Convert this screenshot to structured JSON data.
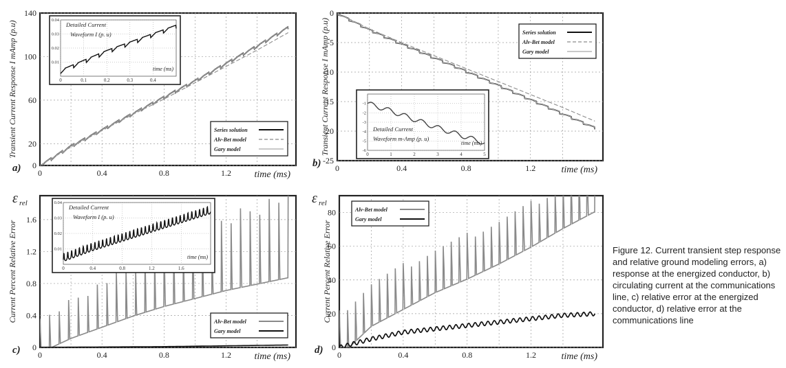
{
  "caption": "Figure 12. Current transient step response and relative ground modeling errors, a) response at the energized conductor, b) circulating current at the communications line, c) relative error at the energized conductor, d) relative error at the communications line",
  "colors": {
    "series": "#111111",
    "alvbet": "#8a8a8a",
    "gary": "#a8a8a8",
    "grid": "#9a9a9a"
  },
  "chart_data": [
    {
      "panel": "a)",
      "type": "line",
      "ylabel": "Transient Current Response I mAmp (p.u)",
      "xlabel": "time (ms)",
      "xlim": [
        0,
        1.65
      ],
      "ylim": [
        0,
        140
      ],
      "xticks": [
        "0",
        "0.4",
        "0.8",
        "1.2"
      ],
      "yticks": [
        "0",
        "20",
        "60",
        "100",
        "140"
      ],
      "legend": "bottom-right",
      "series": [
        {
          "name": "Series solution",
          "x": [
            0,
            0.2,
            0.4,
            0.6,
            0.8,
            1.0,
            1.2,
            1.4,
            1.6
          ],
          "y": [
            0,
            18,
            33,
            48,
            63,
            78,
            94,
            110,
            127
          ]
        },
        {
          "name": "Alv-Bet model",
          "x": [
            0,
            0.2,
            0.4,
            0.6,
            0.8,
            1.0,
            1.2,
            1.4,
            1.6
          ],
          "y": [
            0,
            17,
            32,
            47,
            61,
            76,
            91,
            106,
            122
          ]
        },
        {
          "name": "Gary model",
          "x": [
            0,
            0.2,
            0.4,
            0.6,
            0.8,
            1.0,
            1.2,
            1.4,
            1.6
          ],
          "y": [
            0,
            18,
            33,
            48,
            63,
            78,
            94,
            110,
            127
          ]
        }
      ],
      "inset": {
        "title": "Detailed Current Waveform I (p. u)",
        "xlabel": "time (ms)",
        "xlim": [
          0,
          0.5
        ],
        "ylim": [
          0,
          0.04
        ],
        "xticks": [
          "0",
          "0.1",
          "0.2",
          "0.3",
          "0.4"
        ],
        "yticks": [
          "0.01",
          "0.02",
          "0.03",
          "0.04"
        ],
        "x": [
          0,
          0.1,
          0.2,
          0.3,
          0.4,
          0.5
        ],
        "y": [
          0.004,
          0.011,
          0.018,
          0.024,
          0.03,
          0.036
        ]
      }
    },
    {
      "panel": "b)",
      "type": "line",
      "ylabel": "Transient Current Response I mAmp (p.u)",
      "xlabel": "time (ms)",
      "xlim": [
        0,
        1.65
      ],
      "ylim": [
        -25,
        0
      ],
      "xticks": [
        "0",
        "0.4",
        "0.8",
        "1.2"
      ],
      "yticks": [
        "0",
        "-5",
        "-10",
        "-15",
        "-20",
        "-25"
      ],
      "legend": "top-right",
      "series": [
        {
          "name": "Series solution",
          "x": [
            0,
            0.2,
            0.4,
            0.6,
            0.8,
            1.0,
            1.2,
            1.4,
            1.6
          ],
          "y": [
            0,
            -2.8,
            -5.2,
            -7.5,
            -9.8,
            -12.2,
            -14.6,
            -17.0,
            -19.4
          ]
        },
        {
          "name": "Alv-Bet model",
          "x": [
            0,
            0.2,
            0.4,
            0.6,
            0.8,
            1.0,
            1.2,
            1.4,
            1.6
          ],
          "y": [
            0,
            -2.7,
            -5.0,
            -7.2,
            -9.4,
            -11.6,
            -13.8,
            -16.0,
            -18.3
          ]
        },
        {
          "name": "Gary model",
          "x": [
            0,
            0.2,
            0.4,
            0.6,
            0.8,
            1.0,
            1.2,
            1.4,
            1.6
          ],
          "y": [
            0,
            -2.8,
            -5.2,
            -7.5,
            -9.8,
            -12.2,
            -14.6,
            -17.0,
            -19.4
          ]
        }
      ],
      "inset": {
        "title": "Detailed Current Waveform m-Amp (p. u)",
        "xlabel": "time (ms)",
        "xlim": [
          0,
          5
        ],
        "ylim": [
          -6,
          0
        ],
        "xticks": [
          "0",
          "1",
          "2",
          "3",
          "4",
          "5"
        ],
        "yticks": [
          "-1",
          "-2",
          "-3",
          "-4",
          "-5",
          "-6"
        ],
        "x": [
          0,
          1,
          2,
          3,
          4,
          5
        ],
        "y": [
          -1.0,
          -1.8,
          -2.7,
          -3.6,
          -4.4,
          -5.2
        ]
      }
    },
    {
      "panel": "c)",
      "type": "line",
      "ylabel": "Current Percent Relative Error",
      "symbol": "ε",
      "symbol_sub": "rel",
      "xlabel": "time (ms)",
      "xlim": [
        0,
        1.65
      ],
      "ylim": [
        0,
        1.9
      ],
      "xticks": [
        "0",
        "0.4",
        "0.8",
        "1.2"
      ],
      "yticks": [
        "0",
        "0.4",
        "0.8",
        "1.2",
        "1.6"
      ],
      "legend": "bottom-right",
      "series": [
        {
          "name": "Alv-Bet model",
          "x": [
            0,
            0.2,
            0.4,
            0.6,
            0.8,
            1.0,
            1.2,
            1.4,
            1.6
          ],
          "y": [
            0,
            0.18,
            0.32,
            0.46,
            0.58,
            0.68,
            0.78,
            0.86,
            0.94
          ]
        },
        {
          "name": "Gary model",
          "x": [
            0,
            0.4,
            0.8,
            1.2,
            1.6
          ],
          "y": [
            0,
            0.005,
            0.01,
            0.02,
            0.03
          ]
        }
      ],
      "inset": {
        "title": "Detailed Current Waveform I (p. u)",
        "xlabel": "time (ms)",
        "xlim": [
          0,
          2
        ],
        "ylim": [
          0,
          0.04
        ],
        "xticks": [
          "0",
          "0.4",
          "0.8",
          "1.2",
          "1.6"
        ],
        "yticks": [
          "0.01",
          "0.02",
          "0.03",
          "0.04"
        ],
        "x": [
          0,
          0.4,
          0.8,
          1.2,
          1.6,
          2.0
        ],
        "y": [
          0.003,
          0.01,
          0.016,
          0.022,
          0.028,
          0.034
        ]
      }
    },
    {
      "panel": "d)",
      "type": "line",
      "ylabel": "Current Percent Relative Error",
      "symbol": "ε",
      "symbol_sub": "rel",
      "xlabel": "time (ms)",
      "xlim": [
        0,
        1.65
      ],
      "ylim": [
        0,
        90
      ],
      "xticks": [
        "0",
        "0.4",
        "0.8",
        "1.2"
      ],
      "yticks": [
        "0",
        "20",
        "40",
        "60",
        "80"
      ],
      "legend": "top-left",
      "series": [
        {
          "name": "Alv-Bet model",
          "x": [
            0,
            0.2,
            0.4,
            0.6,
            0.8,
            1.0,
            1.2,
            1.4,
            1.6
          ],
          "y": [
            0,
            18,
            28,
            38,
            46,
            55,
            65,
            76,
            86
          ]
        },
        {
          "name": "Gary model",
          "x": [
            0,
            0.2,
            0.4,
            0.6,
            0.8,
            1.0,
            1.2,
            1.4,
            1.6
          ],
          "y": [
            0,
            5,
            9,
            11,
            13,
            15,
            17,
            19,
            20
          ]
        }
      ]
    }
  ]
}
